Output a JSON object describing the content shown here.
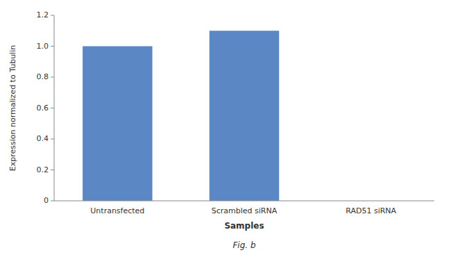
{
  "chart_data": {
    "type": "bar",
    "categories": [
      "Untransfected",
      "Scrambled siRNA",
      "RAD51 siRNA"
    ],
    "values": [
      1.0,
      1.1,
      0.0
    ],
    "color": "#5b87c5",
    "ylim": [
      0,
      1.2
    ],
    "yticks": [
      0,
      0.2,
      0.4,
      0.6,
      0.8,
      {
        "value": 1.0,
        "label": "1.0"
      },
      1.2
    ],
    "xlabel": "Samples",
    "ylabel": "Expression normalized to Tubulin",
    "annotations": [
      "Fig. b"
    ],
    "grid": false
  }
}
